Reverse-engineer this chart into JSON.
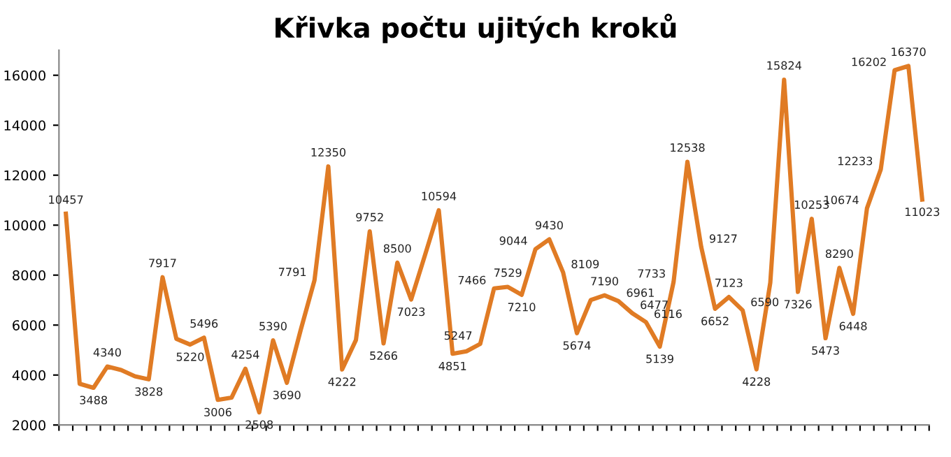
{
  "chart_data": {
    "type": "line",
    "title": "Křivka počtu ujitých kroků",
    "categories": [
      null,
      null,
      null,
      null,
      null,
      null,
      null,
      null,
      null,
      null,
      null,
      null,
      null,
      null,
      null,
      null,
      null,
      null,
      null,
      null,
      null,
      null,
      null,
      null,
      null,
      null,
      null,
      null,
      null,
      null,
      null,
      null,
      null,
      null,
      null,
      null,
      null,
      null,
      null,
      null,
      null,
      null,
      null,
      null,
      null,
      null,
      null,
      null,
      null,
      null,
      null,
      null,
      null,
      null,
      null,
      null,
      null,
      null,
      null,
      null,
      null,
      null,
      null
    ],
    "series": [
      {
        "color": "#e07b24",
        "values": [
          10457,
          3650,
          3488,
          4340,
          4200,
          3950,
          3828,
          7917,
          5450,
          5220,
          5496,
          3006,
          3100,
          4254,
          2508,
          5390,
          3690,
          5800,
          7791,
          12350,
          4222,
          5400,
          9752,
          5266,
          8500,
          7023,
          8800,
          10594,
          4851,
          4950,
          5247,
          7466,
          7529,
          7210,
          9044,
          9430,
          8109,
          5674,
          7000,
          7190,
          6961,
          6477,
          6116,
          5139,
          7733,
          12538,
          9127,
          6652,
          7123,
          6590,
          4228,
          7700,
          15824,
          7326,
          10253,
          5473,
          8290,
          6448,
          10674,
          12233,
          16202,
          16370,
          11023
        ],
        "value_labels": [
          "10457",
          null,
          "3488",
          "4340",
          null,
          null,
          "3828",
          "7917",
          null,
          "5220",
          "5496",
          "3006",
          null,
          "4254",
          "2508",
          "5390",
          "3690",
          null,
          "7791",
          "12350",
          "4222",
          null,
          "9752",
          "5266",
          "8500",
          "7023",
          null,
          "10594",
          "4851",
          null,
          "5247",
          "7466",
          "7529",
          "7210",
          "9044",
          "9430",
          "8109",
          "5674",
          null,
          "7190",
          "6961",
          "6477",
          "6116",
          "5139",
          "7733",
          "12538",
          "9127",
          "6652",
          "7123",
          "6590",
          "4228",
          null,
          "15824",
          "7326",
          "10253",
          "5473",
          "8290",
          "6448",
          "10674",
          "12233",
          "16202",
          "16370",
          "11023"
        ]
      }
    ],
    "ylim": [
      2000,
      17000
    ],
    "yticks": [
      2000,
      4000,
      6000,
      8000,
      10000,
      12000,
      14000,
      16000
    ],
    "grid": false,
    "marker": "none",
    "line_style": "solid",
    "tick_labels": "y"
  }
}
